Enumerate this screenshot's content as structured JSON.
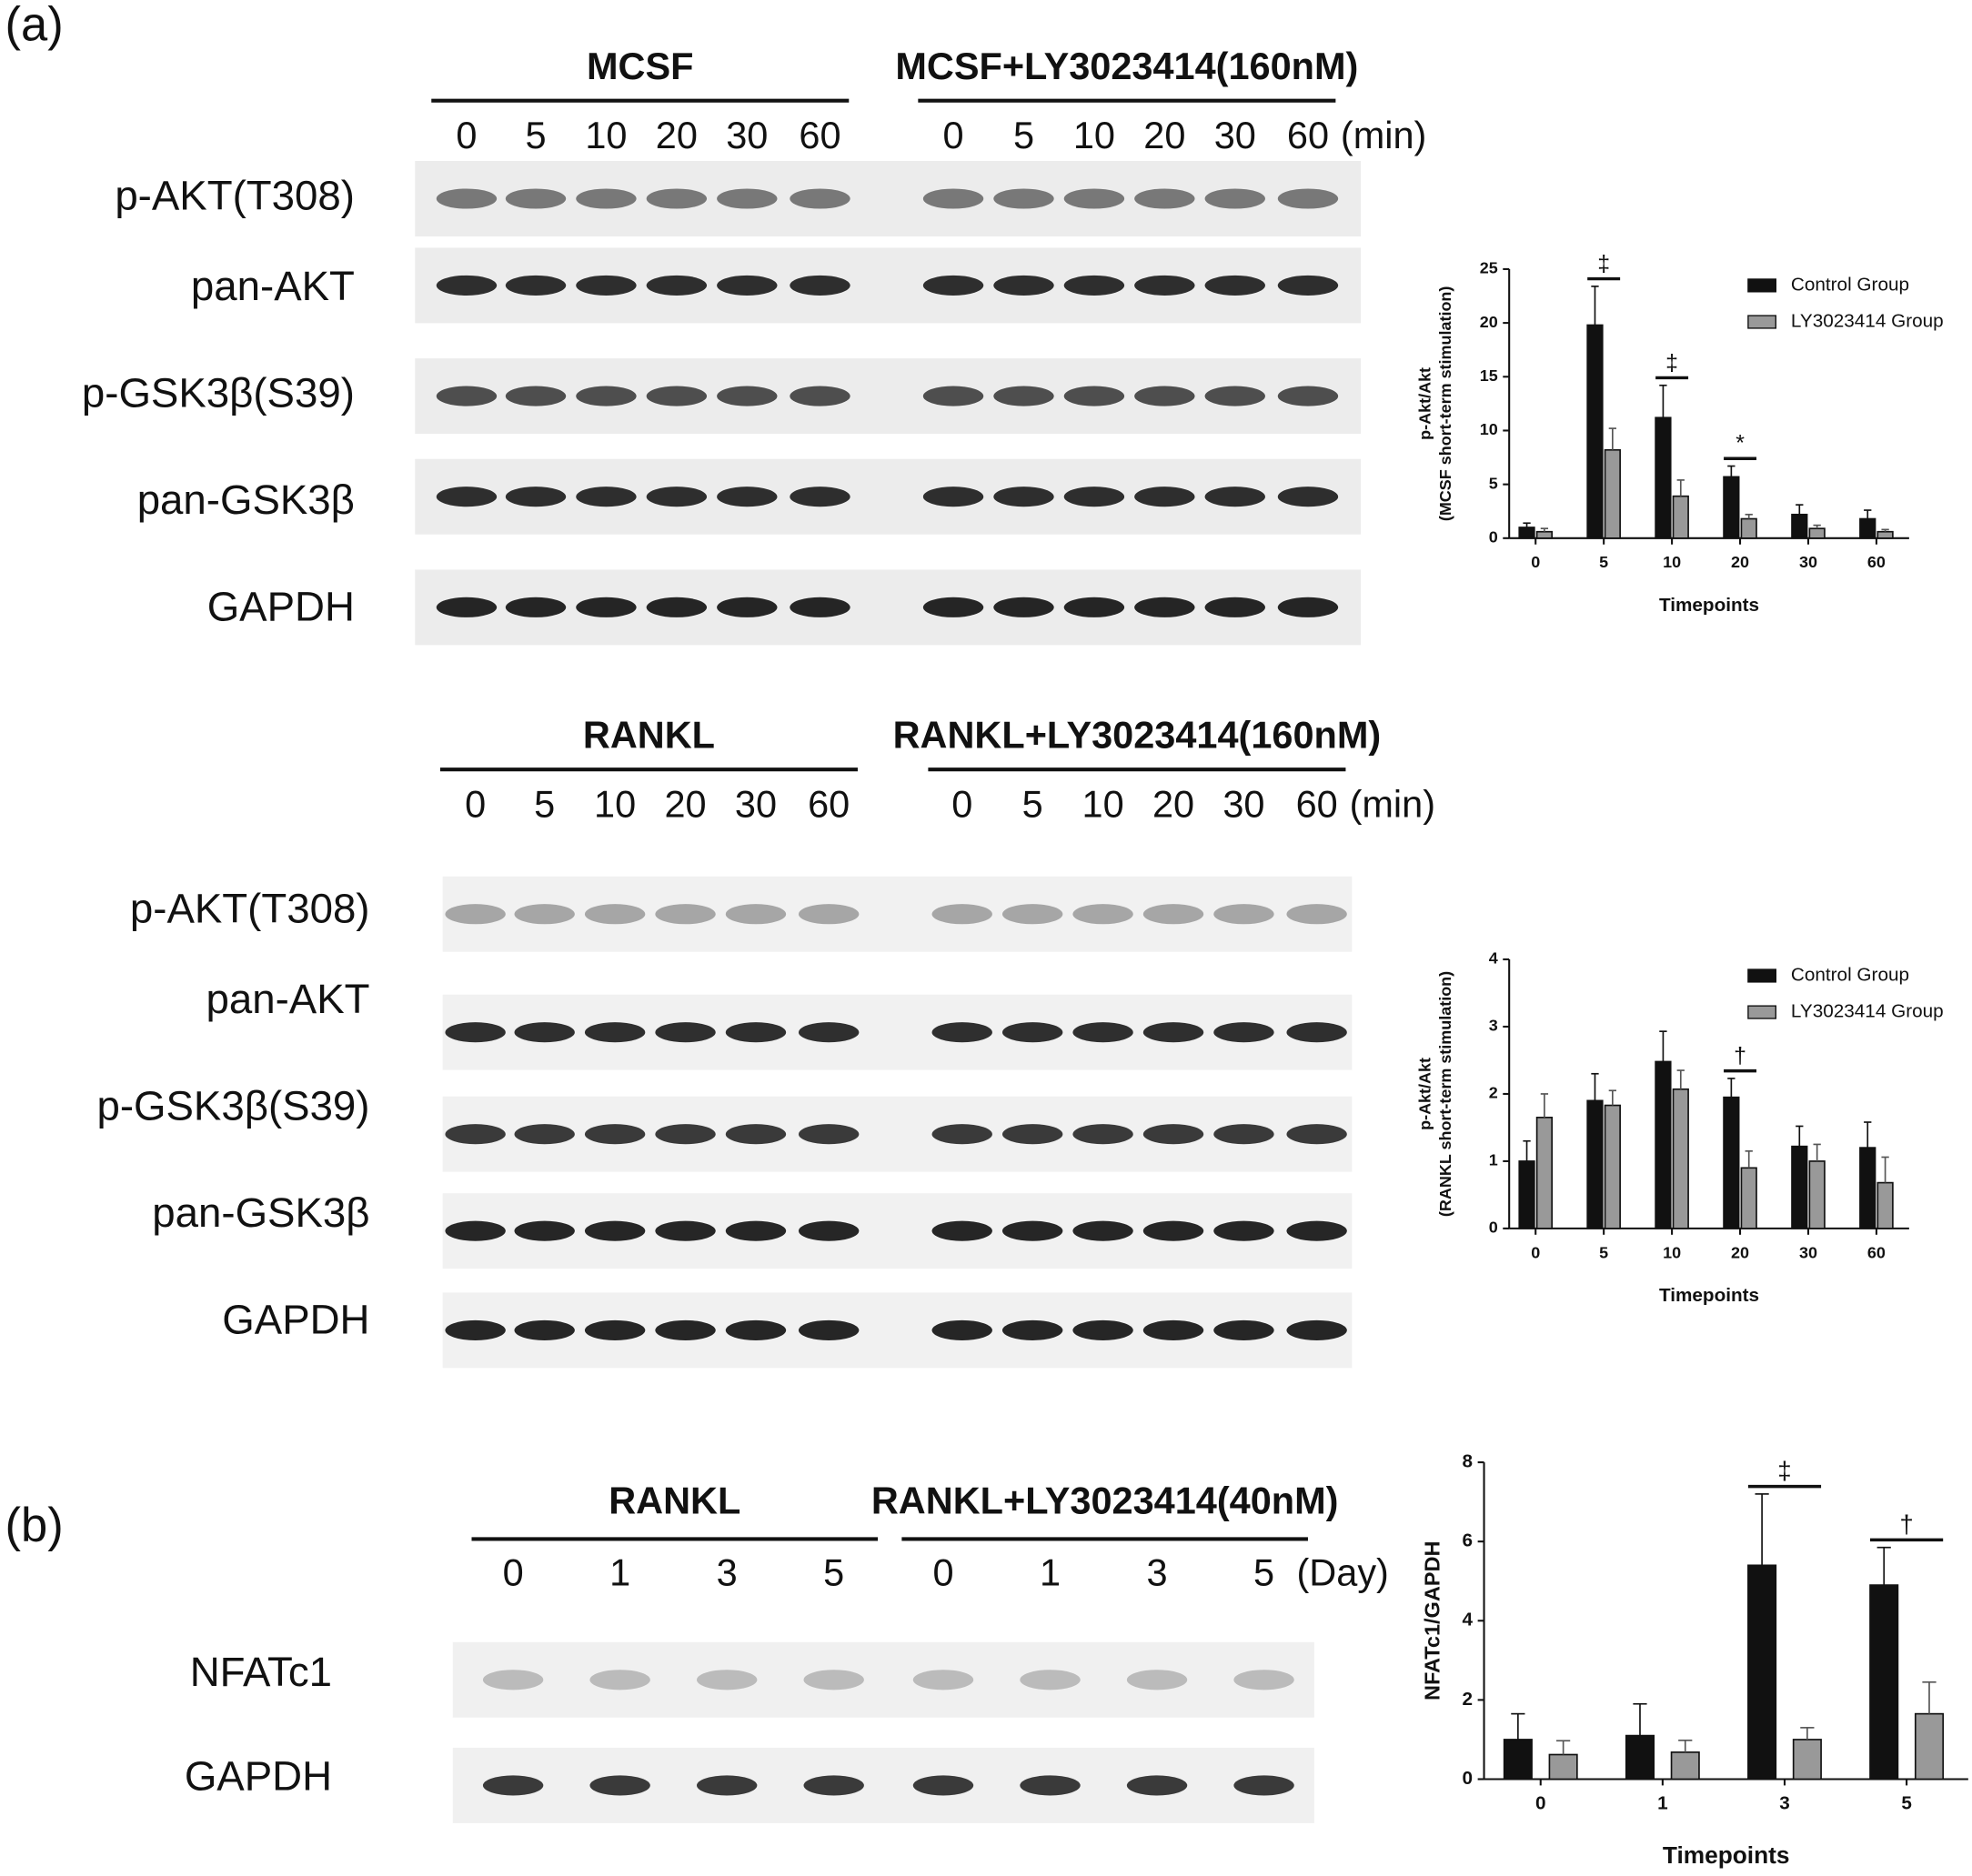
{
  "panel_labels": [
    "(a)",
    "(b)"
  ],
  "blots": [
    {
      "group_labels": [
        "MCSF",
        "MCSF+LY3023414(160nM)"
      ],
      "lanes": [
        [
          "0",
          "5",
          "10",
          "20",
          "30",
          "60"
        ],
        [
          "0",
          "5",
          "10",
          "20",
          "30",
          "60"
        ]
      ],
      "unit": "(min)",
      "rows": [
        "p-AKT(T308)",
        "pan-AKT",
        "p-GSK3β(S39)",
        "pan-GSK3β",
        "GAPDH"
      ]
    },
    {
      "group_labels": [
        "RANKL",
        "RANKL+LY3023414(160nM)"
      ],
      "lanes": [
        [
          "0",
          "5",
          "10",
          "20",
          "30",
          "60"
        ],
        [
          "0",
          "5",
          "10",
          "20",
          "30",
          "60"
        ]
      ],
      "unit": "(min)",
      "rows": [
        "p-AKT(T308)",
        "pan-AKT",
        "p-GSK3β(S39)",
        "pan-GSK3β",
        "GAPDH"
      ]
    },
    {
      "group_labels": [
        "RANKL",
        "RANKL+LY3023414(40nM)"
      ],
      "lanes": [
        [
          "0",
          "1",
          "3",
          "5"
        ],
        [
          "0",
          "1",
          "3",
          "5"
        ]
      ],
      "unit": "(Day)",
      "rows": [
        "NFATc1",
        "GAPDH"
      ]
    }
  ],
  "chart_data": [
    {
      "type": "bar",
      "y_label": [
        "p-Akt/Akt",
        "(MCSF short-term stimulation)"
      ],
      "x_label": "Timepoints",
      "categories": [
        "0",
        "5",
        "10",
        "20",
        "30",
        "60"
      ],
      "series": [
        {
          "name": "Control Group",
          "color": "#111111",
          "values": [
            1.0,
            19.8,
            11.2,
            5.7,
            2.2,
            1.8
          ],
          "errors": [
            0.4,
            3.6,
            3.0,
            1.0,
            0.9,
            0.8
          ]
        },
        {
          "name": "LY3023414 Group",
          "color": "#999999",
          "values": [
            0.6,
            8.2,
            3.9,
            1.8,
            0.9,
            0.6
          ],
          "errors": [
            0.3,
            2.0,
            1.5,
            0.4,
            0.3,
            0.2
          ]
        }
      ],
      "annotations": [
        null,
        "‡",
        "‡",
        "*",
        null,
        null
      ],
      "ylim": [
        0,
        25
      ],
      "yticks": [
        0,
        5,
        10,
        15,
        20,
        25
      ],
      "legend": "upper right"
    },
    {
      "type": "bar",
      "y_label": [
        "p-Akt/Akt",
        "(RANKL short-term stimulation)"
      ],
      "x_label": "Timepoints",
      "categories": [
        "0",
        "5",
        "10",
        "20",
        "30",
        "60"
      ],
      "series": [
        {
          "name": "Control Group",
          "color": "#111111",
          "values": [
            1.0,
            1.9,
            2.48,
            1.95,
            1.22,
            1.2
          ],
          "errors": [
            0.3,
            0.4,
            0.45,
            0.28,
            0.3,
            0.38
          ]
        },
        {
          "name": "LY3023414 Group",
          "color": "#999999",
          "values": [
            1.65,
            1.83,
            2.07,
            0.9,
            1.0,
            0.68
          ],
          "errors": [
            0.35,
            0.22,
            0.28,
            0.25,
            0.25,
            0.38
          ]
        }
      ],
      "annotations": [
        null,
        null,
        null,
        "†",
        null,
        null
      ],
      "ylim": [
        0,
        4
      ],
      "yticks": [
        0,
        1,
        2,
        3,
        4
      ],
      "legend": "upper right"
    },
    {
      "type": "bar",
      "y_label": [
        "NFATc1/GAPDH"
      ],
      "x_label": "Timepoints",
      "categories": [
        "0",
        "1",
        "3",
        "5"
      ],
      "series": [
        {
          "color": "#111111",
          "values": [
            1.0,
            1.1,
            5.4,
            4.9
          ],
          "errors": [
            0.65,
            0.8,
            1.8,
            0.95
          ]
        },
        {
          "color": "#999999",
          "values": [
            0.62,
            0.68,
            1.0,
            1.65
          ],
          "errors": [
            0.35,
            0.3,
            0.3,
            0.8
          ]
        }
      ],
      "annotations": [
        null,
        null,
        "‡",
        "†"
      ],
      "ylim": [
        0,
        8
      ],
      "yticks": [
        0,
        2,
        4,
        6,
        8
      ]
    }
  ]
}
